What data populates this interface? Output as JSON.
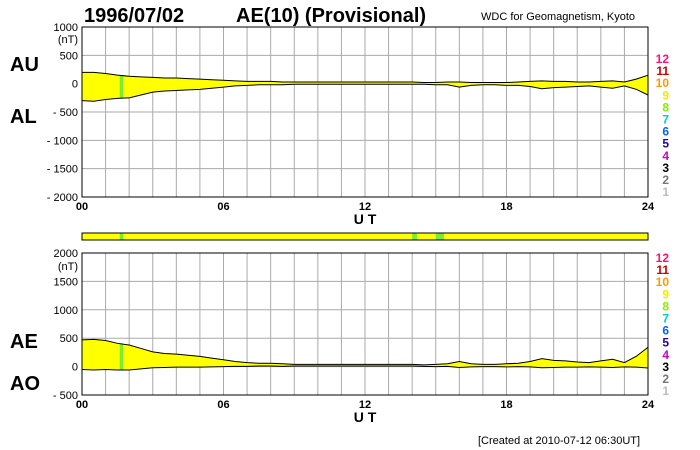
{
  "header": {
    "date": "1996/07/02",
    "title": "AE(10) (Provisional)",
    "source": "WDC for Geomagnetism, Kyoto"
  },
  "footer": {
    "created": "[Created at 2010-07-12 06:30UT]"
  },
  "colors": {
    "fill": "#ffff00",
    "highlight": "#77ee33",
    "grid": "#aaaaaa",
    "line": "#000000"
  },
  "activity_scale": [
    {
      "label": "12",
      "color": "#ff1177"
    },
    {
      "label": "11",
      "color": "#cc0000"
    },
    {
      "label": "10",
      "color": "#ff9900"
    },
    {
      "label": "9",
      "color": "#eeee00"
    },
    {
      "label": "8",
      "color": "#88ee00"
    },
    {
      "label": "7",
      "color": "#00cccc"
    },
    {
      "label": "6",
      "color": "#0066ff"
    },
    {
      "label": "5",
      "color": "#2200aa"
    },
    {
      "label": "4",
      "color": "#cc00cc"
    },
    {
      "label": "3",
      "color": "#000000"
    },
    {
      "label": "2",
      "color": "#777777"
    },
    {
      "label": "1",
      "color": "#bbbbbb"
    }
  ],
  "activity_bar": {
    "segments": [
      {
        "start": 0,
        "end": 24,
        "level": 9
      }
    ],
    "highlights": [
      [
        1.6,
        1.75
      ],
      [
        14.0,
        14.2
      ],
      [
        15.0,
        15.35
      ]
    ]
  },
  "chart_data": [
    {
      "type": "area",
      "xlabel": "U T",
      "units": "(nT)",
      "upper_label": "AU",
      "lower_label": "AL",
      "x_ticks": [
        "00",
        "06",
        "12",
        "18",
        "24"
      ],
      "y_ticks": [
        "1000",
        "500",
        "0",
        "- 500",
        "- 1000",
        "- 1500",
        "- 2000"
      ],
      "xlim": [
        0,
        24
      ],
      "ylim": [
        -2000,
        1000
      ],
      "grid": true,
      "series": [
        {
          "name": "AU",
          "x": [
            0,
            0.5,
            1,
            1.5,
            2,
            2.5,
            3,
            3.5,
            4,
            4.5,
            5,
            5.5,
            6,
            6.5,
            7,
            7.5,
            8,
            8.5,
            9,
            9.5,
            10,
            10.5,
            11,
            11.5,
            12,
            12.5,
            13,
            13.5,
            14,
            14.5,
            15,
            15.5,
            16,
            16.5,
            17,
            17.5,
            18,
            18.5,
            19,
            19.5,
            20,
            20.5,
            21,
            21.5,
            22,
            22.5,
            23,
            23.5,
            24
          ],
          "values": [
            200,
            200,
            180,
            150,
            130,
            120,
            110,
            100,
            100,
            90,
            80,
            70,
            60,
            50,
            40,
            40,
            40,
            30,
            30,
            30,
            30,
            30,
            30,
            30,
            30,
            30,
            30,
            30,
            30,
            20,
            20,
            30,
            30,
            20,
            20,
            20,
            20,
            30,
            40,
            50,
            40,
            40,
            30,
            30,
            40,
            50,
            30,
            80,
            150
          ]
        },
        {
          "name": "AL",
          "x": [
            0,
            0.5,
            1,
            1.5,
            2,
            2.5,
            3,
            3.5,
            4,
            4.5,
            5,
            5.5,
            6,
            6.5,
            7,
            7.5,
            8,
            8.5,
            9,
            9.5,
            10,
            10.5,
            11,
            11.5,
            12,
            12.5,
            13,
            13.5,
            14,
            14.5,
            15,
            15.5,
            16,
            16.5,
            17,
            17.5,
            18,
            18.5,
            19,
            19.5,
            20,
            20.5,
            21,
            21.5,
            22,
            22.5,
            23,
            23.5,
            24
          ],
          "values": [
            -300,
            -310,
            -280,
            -260,
            -250,
            -200,
            -150,
            -130,
            -120,
            -110,
            -100,
            -80,
            -60,
            -40,
            -30,
            -20,
            -20,
            -20,
            -10,
            -10,
            -10,
            -10,
            -10,
            -10,
            -10,
            -10,
            -10,
            -10,
            -10,
            -10,
            -20,
            -20,
            -60,
            -30,
            -20,
            -20,
            -30,
            -30,
            -50,
            -90,
            -70,
            -60,
            -50,
            -40,
            -60,
            -80,
            -40,
            -100,
            -200
          ]
        }
      ]
    },
    {
      "type": "area",
      "xlabel": "U T",
      "units": "(nT)",
      "upper_label": "AE",
      "lower_label": "AO",
      "x_ticks": [
        "00",
        "06",
        "12",
        "18",
        "24"
      ],
      "y_ticks": [
        "2000",
        "1500",
        "1000",
        "500",
        "0",
        "- 500"
      ],
      "xlim": [
        0,
        24
      ],
      "ylim": [
        -500,
        2000
      ],
      "grid": true,
      "series": [
        {
          "name": "AE",
          "x": [
            0,
            0.5,
            1,
            1.5,
            2,
            2.5,
            3,
            3.5,
            4,
            4.5,
            5,
            5.5,
            6,
            6.5,
            7,
            7.5,
            8,
            8.5,
            9,
            9.5,
            10,
            10.5,
            11,
            11.5,
            12,
            12.5,
            13,
            13.5,
            14,
            14.5,
            15,
            15.5,
            16,
            16.5,
            17,
            17.5,
            18,
            18.5,
            19,
            19.5,
            20,
            20.5,
            21,
            21.5,
            22,
            22.5,
            23,
            23.5,
            24
          ],
          "values": [
            470,
            480,
            460,
            410,
            380,
            320,
            260,
            230,
            220,
            200,
            180,
            150,
            120,
            90,
            70,
            60,
            60,
            50,
            40,
            40,
            40,
            40,
            40,
            40,
            40,
            40,
            40,
            40,
            40,
            30,
            40,
            50,
            90,
            50,
            40,
            40,
            50,
            60,
            90,
            140,
            110,
            100,
            80,
            70,
            100,
            130,
            70,
            180,
            340
          ]
        },
        {
          "name": "AO",
          "x": [
            0,
            0.5,
            1,
            1.5,
            2,
            2.5,
            3,
            3.5,
            4,
            4.5,
            5,
            5.5,
            6,
            6.5,
            7,
            7.5,
            8,
            8.5,
            9,
            9.5,
            10,
            10.5,
            11,
            11.5,
            12,
            12.5,
            13,
            13.5,
            14,
            14.5,
            15,
            15.5,
            16,
            16.5,
            17,
            17.5,
            18,
            18.5,
            19,
            19.5,
            20,
            20.5,
            21,
            21.5,
            22,
            22.5,
            23,
            23.5,
            24
          ],
          "values": [
            -50,
            -60,
            -50,
            -60,
            -60,
            -40,
            -20,
            -15,
            -10,
            -10,
            -10,
            -5,
            0,
            5,
            5,
            10,
            10,
            5,
            10,
            10,
            10,
            10,
            10,
            10,
            10,
            10,
            10,
            10,
            10,
            5,
            0,
            5,
            -15,
            -5,
            0,
            0,
            -5,
            0,
            -5,
            -20,
            -15,
            -10,
            -10,
            -5,
            -10,
            -15,
            -5,
            -10,
            -25
          ]
        }
      ]
    }
  ]
}
